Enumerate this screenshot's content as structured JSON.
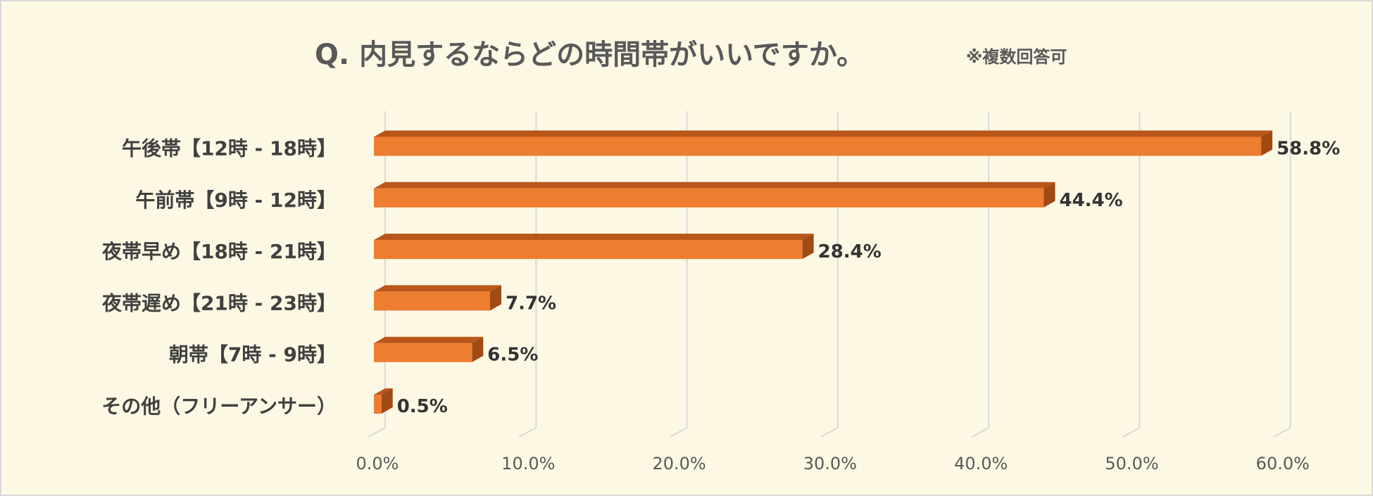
{
  "colors": {
    "background": "#fdf8e4",
    "bar_front": "#ed7d31",
    "bar_top": "#b9571b",
    "bar_side": "#a04a14",
    "title": "#595959",
    "category_label": "#404040",
    "value_label": "#333333",
    "tick_label": "#595959",
    "gridline": "#d9d9d9"
  },
  "chart_data": {
    "type": "bar",
    "orientation": "horizontal",
    "style": "3d",
    "title": "Q. 内見するならどの時間帯がいいですか。",
    "subtitle": "※複数回答可",
    "categories": [
      "午後帯【12時 - 18時】",
      "午前帯【9時 - 12時】",
      "夜帯早め【18時 - 21時】",
      "夜帯遅め【21時 - 23時】",
      "朝帯【7時 - 9時】",
      "その他（フリーアンサー）"
    ],
    "values": [
      58.8,
      44.4,
      28.4,
      7.7,
      6.5,
      0.5
    ],
    "value_labels": [
      "58.8%",
      "44.4%",
      "28.4%",
      "7.7%",
      "6.5%",
      "0.5%"
    ],
    "xlim": [
      0,
      60
    ],
    "x_ticks": [
      0,
      10,
      20,
      30,
      40,
      50,
      60
    ],
    "x_tick_labels": [
      "0.0%",
      "10.0%",
      "20.0%",
      "30.0%",
      "40.0%",
      "50.0%",
      "60.0%"
    ],
    "grid": true,
    "legend": "none",
    "xlabel": "",
    "ylabel": ""
  }
}
